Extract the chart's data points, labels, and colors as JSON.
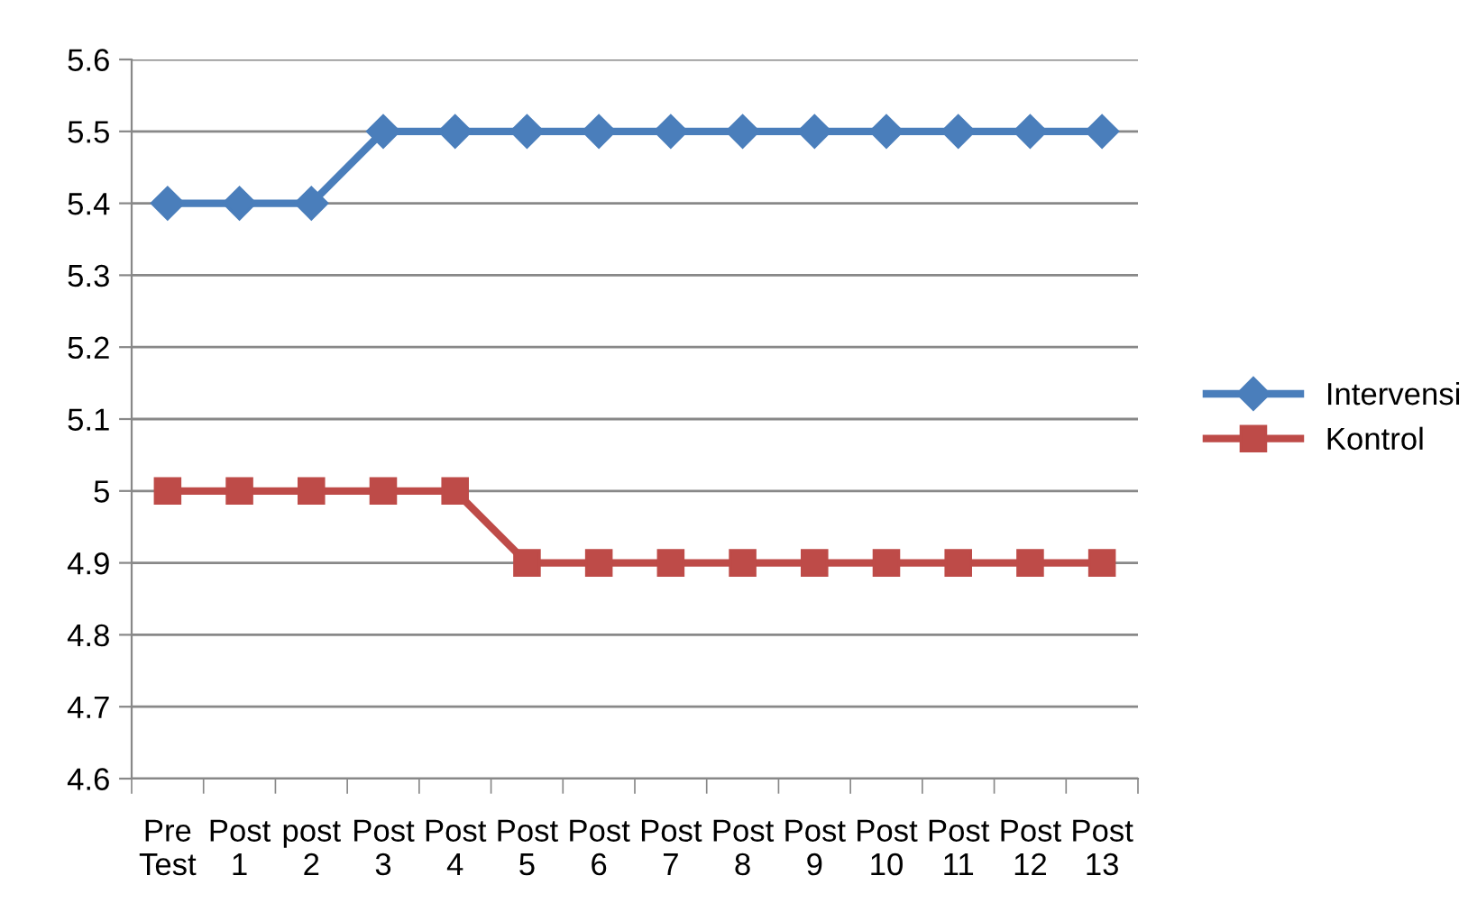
{
  "chart_data": {
    "type": "line",
    "categories": [
      "Pre Test",
      "Post 1",
      "post 2",
      "Post 3",
      "Post 4",
      "Post 5",
      "Post 6",
      "Post 7",
      "Post 8",
      "Post 9",
      "Post 10",
      "Post 11",
      "Post 12",
      "Post 13"
    ],
    "series": [
      {
        "name": "Intervensi",
        "color": "#4a7ebb",
        "marker": "diamond",
        "values": [
          5.4,
          5.4,
          5.4,
          5.5,
          5.5,
          5.5,
          5.5,
          5.5,
          5.5,
          5.5,
          5.5,
          5.5,
          5.5,
          5.5
        ]
      },
      {
        "name": "Kontrol",
        "color": "#be4b48",
        "marker": "square",
        "values": [
          5.0,
          5.0,
          5.0,
          5.0,
          5.0,
          4.9,
          4.9,
          4.9,
          4.9,
          4.9,
          4.9,
          4.9,
          4.9,
          4.9
        ]
      }
    ],
    "ylim": [
      4.6,
      5.6
    ],
    "yticks": [
      4.6,
      4.7,
      4.8,
      4.9,
      5,
      5.1,
      5.2,
      5.3,
      5.4,
      5.5,
      5.6
    ],
    "grid": "y",
    "legend": "right",
    "line_style": "solid"
  }
}
